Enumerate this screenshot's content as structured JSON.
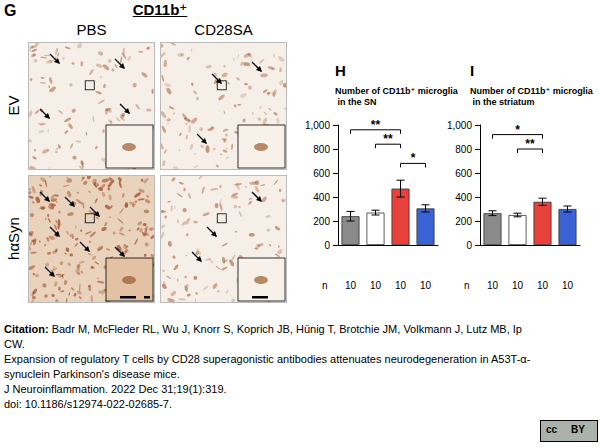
{
  "panel_g": {
    "letter": "G",
    "marker": "CD11b⁺",
    "columns": [
      "PBS",
      "CD28SA"
    ],
    "rows": [
      "EV",
      "hαSyn"
    ]
  },
  "chart_data": [
    {
      "type": "bar",
      "letter": "H",
      "title": "Number of CD11b⁺ microglia in the SN",
      "categories": [
        null,
        null,
        null,
        null
      ],
      "values": [
        240,
        270,
        470,
        305
      ],
      "errors": [
        40,
        20,
        70,
        30
      ],
      "colors": [
        "#8a8a8a",
        "#ffffff",
        "#e8413b",
        "#3a62d4"
      ],
      "ylim": [
        0,
        1000
      ],
      "yticks": [
        0,
        200,
        400,
        600,
        800,
        1000
      ],
      "grid": false,
      "n_label": "n",
      "n": [
        10,
        10,
        10,
        10
      ],
      "significance": [
        {
          "from": 0,
          "to": 2,
          "y": 960,
          "label": "**"
        },
        {
          "from": 1,
          "to": 2,
          "y": 840,
          "label": "**"
        },
        {
          "from": 2,
          "to": 3,
          "y": 680,
          "label": "*"
        }
      ]
    },
    {
      "type": "bar",
      "letter": "I",
      "title": "Number of CD11b⁺ microglia in the striatum",
      "categories": [
        null,
        null,
        null,
        null
      ],
      "values": [
        265,
        250,
        360,
        300
      ],
      "errors": [
        20,
        15,
        30,
        25
      ],
      "colors": [
        "#8a8a8a",
        "#ffffff",
        "#e8413b",
        "#3a62d4"
      ],
      "ylim": [
        0,
        1000
      ],
      "yticks": [
        0,
        200,
        400,
        600,
        800,
        1000
      ],
      "grid": false,
      "n_label": "n",
      "n": [
        10,
        10,
        10,
        10
      ],
      "significance": [
        {
          "from": 0,
          "to": 2,
          "y": 920,
          "label": "*"
        },
        {
          "from": 1,
          "to": 2,
          "y": 800,
          "label": "**"
        }
      ]
    }
  ],
  "citation": {
    "label": "Citation:",
    "authors": "Badr M, McFleder RL, Wu J, Knorr S, Koprich JB, Hünig T, Brotchie JM, Volkmann J, Lutz MB, Ip CW.",
    "title": "Expansion of regulatory T cells by CD28 superagonistic antibodies attenuates neurodegeneration in A53T-α-synuclein Parkinson's disease mice.",
    "journal": "J Neuroinflammation. 2022 Dec 31;19(1):319.",
    "doi": "doi: 10.1186/s12974-022-02685-7."
  },
  "license": [
    "cc",
    "BY"
  ]
}
